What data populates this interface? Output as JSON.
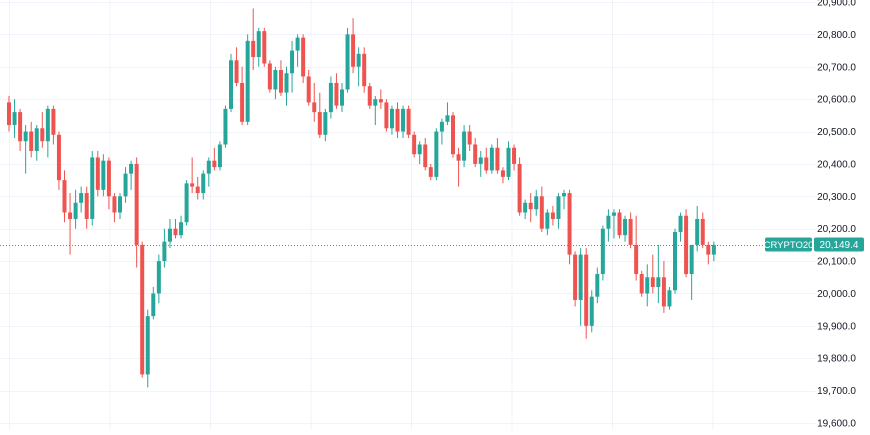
{
  "chart_data": {
    "type": "candlestick",
    "symbol": "CRYPTO20",
    "last_price_label": "20,149.4",
    "last_price": 20149.4,
    "ylim": [
      19600,
      20900
    ],
    "y_ticks": [
      19600,
      19700,
      19800,
      19900,
      20000,
      20100,
      20200,
      20300,
      20400,
      20500,
      20600,
      20700,
      20800,
      20900
    ],
    "y_tick_labels": [
      "19,600.0",
      "19,700.0",
      "19,800.0",
      "19,900.0",
      "20,000.0",
      "20,100.0",
      "20,200.0",
      "20,300.0",
      "20,400.0",
      "20,500.0",
      "20,600.0",
      "20,700.0",
      "20,800.0",
      "20,900.0"
    ],
    "grid": true,
    "colors": {
      "up": "#26a69a",
      "down": "#ef5350",
      "badge": "#26a69a",
      "grid": "#f0f3fa",
      "axis_text": "#131722"
    },
    "candles": [
      [
        20590,
        20610,
        20500,
        20520
      ],
      [
        20520,
        20600,
        20480,
        20560
      ],
      [
        20560,
        20570,
        20440,
        20470
      ],
      [
        20470,
        20520,
        20370,
        20500
      ],
      [
        20500,
        20530,
        20420,
        20440
      ],
      [
        20440,
        20520,
        20410,
        20510
      ],
      [
        20510,
        20560,
        20450,
        20470
      ],
      [
        20470,
        20580,
        20420,
        20570
      ],
      [
        20570,
        20580,
        20460,
        20490
      ],
      [
        20490,
        20500,
        20320,
        20350
      ],
      [
        20350,
        20380,
        20220,
        20250
      ],
      [
        20250,
        20310,
        20120,
        20230
      ],
      [
        20230,
        20320,
        20200,
        20280
      ],
      [
        20280,
        20330,
        20250,
        20310
      ],
      [
        20310,
        20330,
        20200,
        20230
      ],
      [
        20230,
        20440,
        20210,
        20420
      ],
      [
        20420,
        20440,
        20300,
        20320
      ],
      [
        20320,
        20430,
        20300,
        20410
      ],
      [
        20410,
        20420,
        20260,
        20300
      ],
      [
        20300,
        20310,
        20220,
        20250
      ],
      [
        20250,
        20310,
        20230,
        20300
      ],
      [
        20300,
        20390,
        20280,
        20370
      ],
      [
        20370,
        20410,
        20320,
        20400
      ],
      [
        20400,
        20420,
        20080,
        20150
      ],
      [
        20150,
        20160,
        19740,
        19750
      ],
      [
        19750,
        19950,
        19710,
        19930
      ],
      [
        19930,
        20020,
        19920,
        20000
      ],
      [
        20000,
        20120,
        19970,
        20100
      ],
      [
        20100,
        20200,
        20080,
        20160
      ],
      [
        20160,
        20230,
        20140,
        20200
      ],
      [
        20200,
        20230,
        20170,
        20180
      ],
      [
        20180,
        20240,
        20170,
        20220
      ],
      [
        20220,
        20350,
        20210,
        20340
      ],
      [
        20340,
        20420,
        20310,
        20330
      ],
      [
        20330,
        20360,
        20290,
        20310
      ],
      [
        20310,
        20380,
        20290,
        20370
      ],
      [
        20370,
        20420,
        20330,
        20410
      ],
      [
        20410,
        20450,
        20380,
        20390
      ],
      [
        20390,
        20470,
        20380,
        20460
      ],
      [
        20460,
        20580,
        20450,
        20570
      ],
      [
        20570,
        20740,
        20560,
        20720
      ],
      [
        20720,
        20760,
        20640,
        20650
      ],
      [
        20650,
        20700,
        20520,
        20530
      ],
      [
        20530,
        20800,
        20520,
        20780
      ],
      [
        20780,
        20880,
        20690,
        20730
      ],
      [
        20730,
        20820,
        20700,
        20810
      ],
      [
        20810,
        20820,
        20700,
        20710
      ],
      [
        20710,
        20720,
        20620,
        20630
      ],
      [
        20630,
        20700,
        20600,
        20690
      ],
      [
        20690,
        20720,
        20610,
        20620
      ],
      [
        20620,
        20700,
        20580,
        20680
      ],
      [
        20680,
        20780,
        20620,
        20750
      ],
      [
        20750,
        20800,
        20700,
        20790
      ],
      [
        20790,
        20800,
        20650,
        20670
      ],
      [
        20670,
        20690,
        20580,
        20590
      ],
      [
        20590,
        20650,
        20530,
        20560
      ],
      [
        20560,
        20620,
        20480,
        20490
      ],
      [
        20490,
        20570,
        20470,
        20560
      ],
      [
        20560,
        20670,
        20540,
        20650
      ],
      [
        20650,
        20680,
        20570,
        20580
      ],
      [
        20580,
        20650,
        20560,
        20630
      ],
      [
        20630,
        20820,
        20620,
        20800
      ],
      [
        20800,
        20850,
        20680,
        20700
      ],
      [
        20700,
        20760,
        20640,
        20740
      ],
      [
        20740,
        20760,
        20620,
        20640
      ],
      [
        20640,
        20650,
        20570,
        20580
      ],
      [
        20580,
        20610,
        20520,
        20600
      ],
      [
        20600,
        20630,
        20570,
        20590
      ],
      [
        20590,
        20600,
        20500,
        20510
      ],
      [
        20510,
        20580,
        20490,
        20570
      ],
      [
        20570,
        20590,
        20480,
        20500
      ],
      [
        20500,
        20580,
        20480,
        20570
      ],
      [
        20570,
        20580,
        20480,
        20490
      ],
      [
        20490,
        20500,
        20420,
        20430
      ],
      [
        20430,
        20470,
        20400,
        20460
      ],
      [
        20460,
        20480,
        20380,
        20390
      ],
      [
        20390,
        20400,
        20350,
        20360
      ],
      [
        20360,
        20510,
        20350,
        20500
      ],
      [
        20500,
        20540,
        20460,
        20530
      ],
      [
        20530,
        20590,
        20520,
        20550
      ],
      [
        20550,
        20560,
        20420,
        20430
      ],
      [
        20430,
        20450,
        20330,
        20410
      ],
      [
        20410,
        20520,
        20390,
        20500
      ],
      [
        20500,
        20520,
        20440,
        20460
      ],
      [
        20460,
        20480,
        20390,
        20400
      ],
      [
        20400,
        20440,
        20360,
        20420
      ],
      [
        20420,
        20450,
        20370,
        20380
      ],
      [
        20380,
        20460,
        20370,
        20450
      ],
      [
        20450,
        20480,
        20370,
        20380
      ],
      [
        20380,
        20390,
        20340,
        20360
      ],
      [
        20360,
        20470,
        20350,
        20450
      ],
      [
        20450,
        20460,
        20380,
        20400
      ],
      [
        20400,
        20420,
        20240,
        20250
      ],
      [
        20250,
        20290,
        20230,
        20280
      ],
      [
        20280,
        20310,
        20220,
        20260
      ],
      [
        20260,
        20320,
        20240,
        20300
      ],
      [
        20300,
        20330,
        20190,
        20200
      ],
      [
        20200,
        20260,
        20180,
        20250
      ],
      [
        20250,
        20270,
        20210,
        20230
      ],
      [
        20230,
        20310,
        20200,
        20300
      ],
      [
        20300,
        20320,
        20260,
        20310
      ],
      [
        20310,
        20320,
        20090,
        20120
      ],
      [
        20120,
        20130,
        19960,
        19980
      ],
      [
        19980,
        20140,
        19900,
        20120
      ],
      [
        20120,
        20140,
        19860,
        19900
      ],
      [
        19900,
        20010,
        19880,
        19990
      ],
      [
        19990,
        20080,
        19970,
        20060
      ],
      [
        20060,
        20210,
        20040,
        20200
      ],
      [
        20200,
        20260,
        20160,
        20240
      ],
      [
        20240,
        20260,
        20170,
        20250
      ],
      [
        20250,
        20260,
        20170,
        20180
      ],
      [
        20180,
        20240,
        20160,
        20230
      ],
      [
        20230,
        20250,
        20140,
        20150
      ],
      [
        20150,
        20240,
        20040,
        20060
      ],
      [
        20060,
        20070,
        19990,
        20000
      ],
      [
        20000,
        20090,
        19960,
        20050
      ],
      [
        20050,
        20120,
        20000,
        20020
      ],
      [
        20020,
        20150,
        19970,
        20050
      ],
      [
        20050,
        20100,
        19940,
        19960
      ],
      [
        19960,
        20020,
        19950,
        20010
      ],
      [
        20010,
        20200,
        20000,
        20190
      ],
      [
        20190,
        20250,
        20160,
        20240
      ],
      [
        20240,
        20260,
        20050,
        20060
      ],
      [
        20060,
        20140,
        19980,
        20150
      ],
      [
        20150,
        20270,
        20130,
        20230
      ],
      [
        20230,
        20250,
        20140,
        20150
      ],
      [
        20150,
        20160,
        20090,
        20120
      ],
      [
        20120,
        20160,
        20100,
        20150
      ]
    ]
  }
}
